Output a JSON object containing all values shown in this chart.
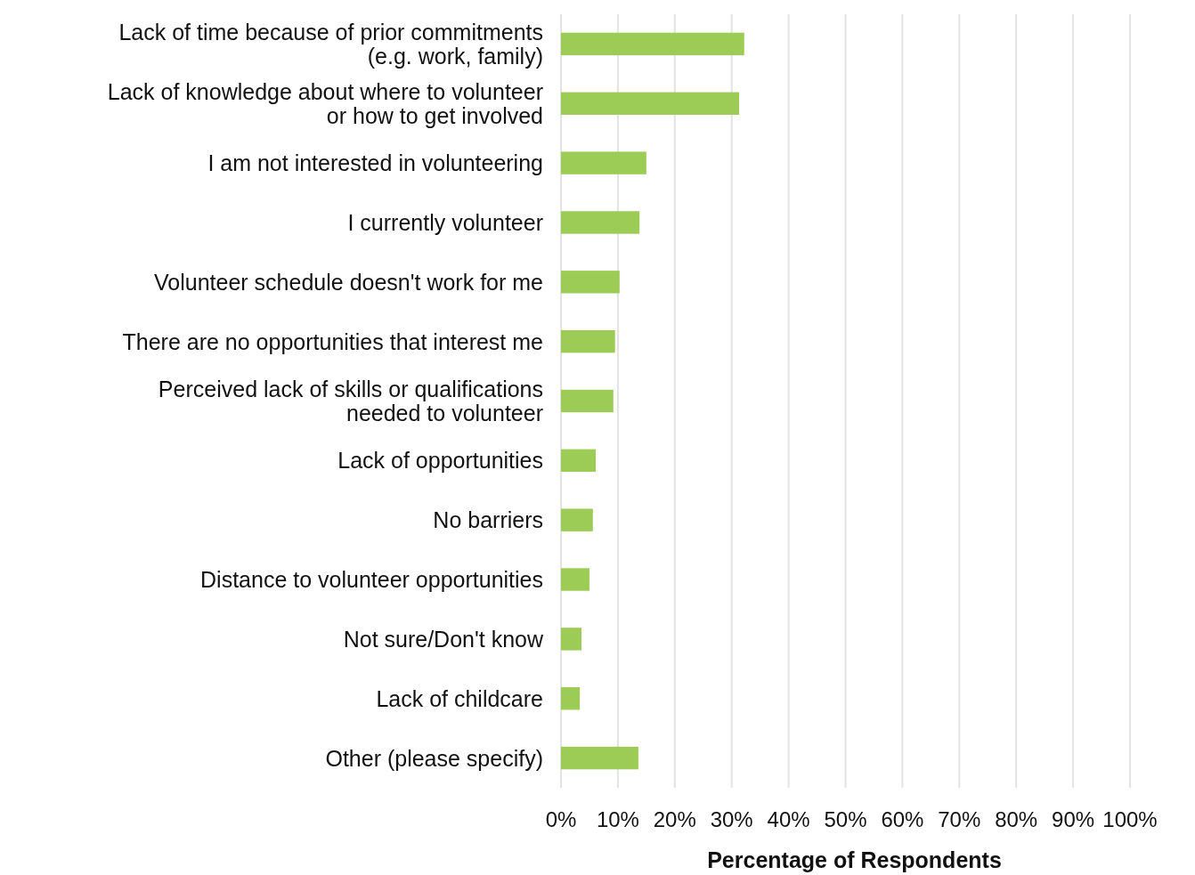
{
  "chart_data": {
    "type": "bar",
    "orientation": "horizontal",
    "xlabel": "Percentage of Respondents",
    "categories": [
      "Lack of time because of prior commitments\n(e.g. work, family)",
      "Lack of knowledge about where to volunteer\nor how to get involved",
      "I am not interested in volunteering",
      "I currently volunteer",
      "Volunteer schedule doesn't work for me",
      "There are no opportunities that interest me",
      "Perceived lack of skills or qualifications\nneeded to volunteer",
      "Lack of opportunities",
      "No barriers",
      "Distance to volunteer opportunities",
      "Not sure/Don't know",
      "Lack of childcare",
      "Other (please specify)"
    ],
    "values": [
      32.2,
      31.3,
      15,
      13.8,
      10.3,
      9.5,
      9.2,
      6.1,
      5.6,
      5,
      3.6,
      3.3,
      13.6
    ],
    "color": "#9ccc55",
    "xlim": [
      0,
      100
    ],
    "xticks": [
      {
        "value": 0,
        "label": "0%"
      },
      {
        "value": 10,
        "label": "10%"
      },
      {
        "value": 20,
        "label": "20%"
      },
      {
        "value": 30,
        "label": "30%"
      },
      {
        "value": 40,
        "label": "40%"
      },
      {
        "value": 50,
        "label": "50%"
      },
      {
        "value": 60,
        "label": "60%"
      },
      {
        "value": 70,
        "label": "70%"
      },
      {
        "value": 80,
        "label": "80%"
      },
      {
        "value": 90,
        "label": "90%"
      },
      {
        "value": 100,
        "label": "100%"
      }
    ],
    "grid": "x"
  }
}
